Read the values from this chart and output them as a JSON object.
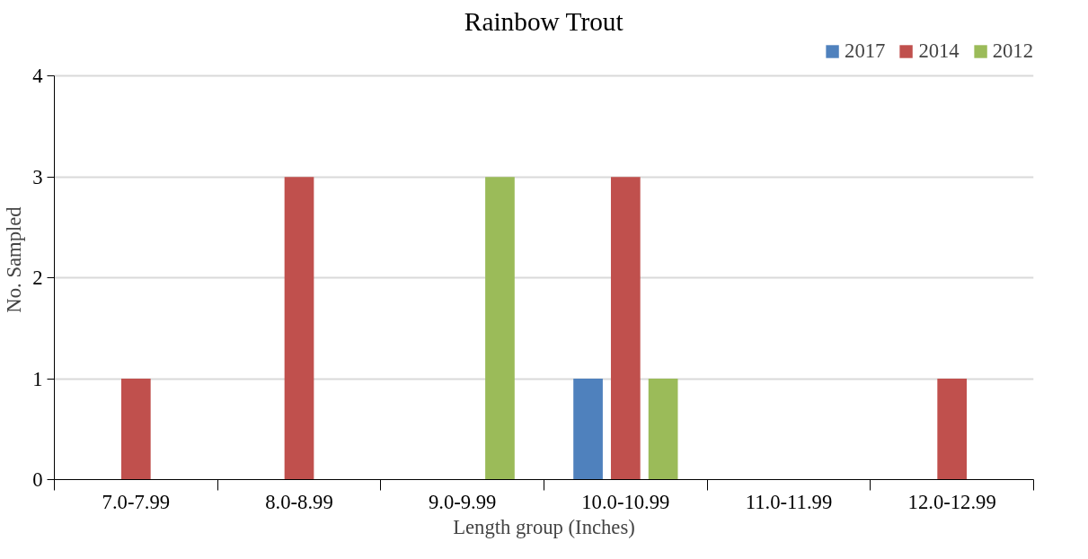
{
  "chart_data": {
    "type": "bar",
    "title": "Rainbow Trout",
    "xlabel": "Length group (Inches)",
    "ylabel": "No. Sampled",
    "categories": [
      "7.0-7.99",
      "8.0-8.99",
      "9.0-9.99",
      "10.0-10.99",
      "11.0-11.99",
      "12.0-12.99"
    ],
    "series": [
      {
        "name": "2017",
        "color": "#4f81bd",
        "values": [
          0,
          0,
          0,
          1,
          0,
          0
        ]
      },
      {
        "name": "2014",
        "color": "#c0504d",
        "values": [
          1,
          3,
          0,
          3,
          0,
          1
        ]
      },
      {
        "name": "2012",
        "color": "#9bbb59",
        "values": [
          0,
          0,
          3,
          1,
          0,
          0
        ]
      }
    ],
    "ylim": [
      0,
      4
    ],
    "yticks": [
      0,
      1,
      2,
      3,
      4
    ],
    "grid": "y",
    "legend": "top right"
  }
}
